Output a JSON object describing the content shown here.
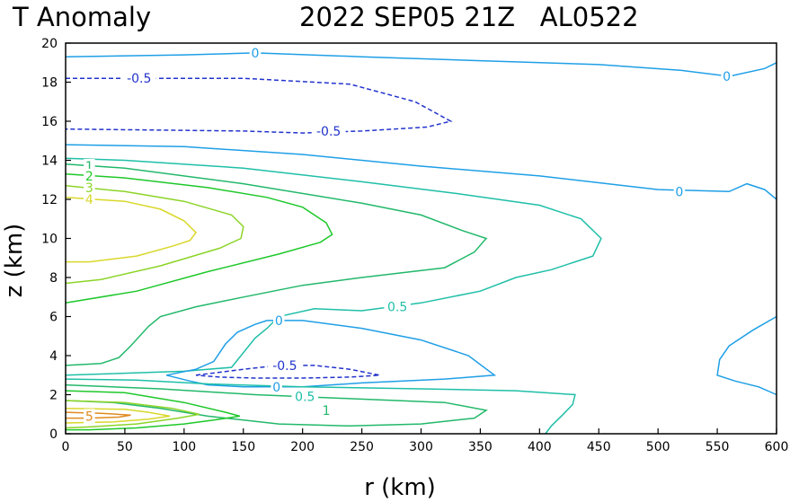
{
  "title_left": "T Anomaly",
  "title_right": "2022 SEP05 21Z   AL0522",
  "chart_data": {
    "type": "contour",
    "title": "T Anomaly   2022 SEP05 21Z   AL0522",
    "xlabel": "r (km)",
    "ylabel": "z (km)",
    "xlim": [
      0,
      600
    ],
    "ylim": [
      0,
      20
    ],
    "xticks": [
      0,
      50,
      100,
      150,
      200,
      250,
      300,
      350,
      400,
      450,
      500,
      550,
      600
    ],
    "yticks": [
      0,
      2,
      4,
      6,
      8,
      10,
      12,
      14,
      16,
      18,
      20
    ],
    "levels": [
      {
        "value": -0.5,
        "color": "#2233cc",
        "dashed": true
      },
      {
        "value": 0,
        "color": "#1f9fe6",
        "dashed": false
      },
      {
        "value": 0.5,
        "color": "#1fbfa8",
        "dashed": false
      },
      {
        "value": 1,
        "color": "#22b86a",
        "dashed": false
      },
      {
        "value": 2,
        "color": "#1ec82a",
        "dashed": false
      },
      {
        "value": 3,
        "color": "#8cd428",
        "dashed": false
      },
      {
        "value": 4,
        "color": "#d9d72a",
        "dashed": false
      },
      {
        "value": 5,
        "color": "#e08a1e",
        "dashed": false
      }
    ],
    "contours": [
      {
        "level": 0,
        "points": [
          [
            0,
            19.3
          ],
          [
            100,
            19.4
          ],
          [
            160,
            19.5
          ],
          [
            250,
            19.3
          ],
          [
            350,
            19.1
          ],
          [
            450,
            18.9
          ],
          [
            520,
            18.6
          ],
          [
            560,
            18.3
          ],
          [
            590,
            18.7
          ],
          [
            600,
            19.0
          ]
        ]
      },
      {
        "level": -0.5,
        "points": [
          [
            0,
            18.2
          ],
          [
            150,
            18.2
          ],
          [
            240,
            17.9
          ],
          [
            295,
            17.0
          ],
          [
            310,
            16.5
          ],
          [
            325,
            16.0
          ],
          [
            305,
            15.7
          ],
          [
            250,
            15.5
          ],
          [
            200,
            15.4
          ],
          [
            150,
            15.5
          ],
          [
            0,
            15.6
          ]
        ]
      },
      {
        "level": 0,
        "points": [
          [
            0,
            14.8
          ],
          [
            100,
            14.7
          ],
          [
            200,
            14.3
          ],
          [
            300,
            13.7
          ],
          [
            400,
            13.2
          ],
          [
            500,
            12.5
          ],
          [
            560,
            12.4
          ],
          [
            575,
            12.8
          ],
          [
            590,
            12.5
          ],
          [
            600,
            12.0
          ]
        ]
      },
      {
        "level": 0.5,
        "points": [
          [
            0,
            14.1
          ],
          [
            50,
            14.0
          ],
          [
            150,
            13.6
          ],
          [
            250,
            12.9
          ],
          [
            330,
            12.3
          ],
          [
            400,
            11.7
          ],
          [
            435,
            11.0
          ],
          [
            452,
            10.0
          ],
          [
            445,
            9.1
          ],
          [
            410,
            8.4
          ],
          [
            380,
            8.0
          ],
          [
            350,
            7.3
          ],
          [
            300,
            6.7
          ],
          [
            250,
            6.3
          ],
          [
            210,
            6.4
          ],
          [
            180,
            6.0
          ],
          [
            170,
            5.4
          ],
          [
            160,
            4.9
          ],
          [
            140,
            3.4
          ],
          [
            100,
            3.2
          ],
          [
            0,
            3.0
          ]
        ]
      },
      {
        "level": 1,
        "points": [
          [
            0,
            13.8
          ],
          [
            50,
            13.6
          ],
          [
            150,
            12.8
          ],
          [
            250,
            11.8
          ],
          [
            300,
            11.2
          ],
          [
            335,
            10.4
          ],
          [
            355,
            10.0
          ],
          [
            345,
            9.3
          ],
          [
            320,
            8.5
          ],
          [
            250,
            8.0
          ],
          [
            200,
            7.6
          ],
          [
            150,
            7.0
          ],
          [
            110,
            6.5
          ],
          [
            80,
            6.0
          ],
          [
            70,
            5.5
          ],
          [
            55,
            4.5
          ],
          [
            45,
            3.9
          ],
          [
            30,
            3.6
          ],
          [
            0,
            3.5
          ]
        ]
      },
      {
        "level": 2,
        "points": [
          [
            0,
            13.3
          ],
          [
            50,
            13.1
          ],
          [
            120,
            12.6
          ],
          [
            170,
            12.1
          ],
          [
            200,
            11.6
          ],
          [
            220,
            10.8
          ],
          [
            225,
            10.2
          ],
          [
            215,
            9.8
          ],
          [
            180,
            9.2
          ],
          [
            120,
            8.3
          ],
          [
            60,
            7.3
          ],
          [
            0,
            6.7
          ]
        ]
      },
      {
        "level": 3,
        "points": [
          [
            0,
            12.7
          ],
          [
            50,
            12.4
          ],
          [
            100,
            11.9
          ],
          [
            140,
            11.2
          ],
          [
            150,
            10.6
          ],
          [
            148,
            10.0
          ],
          [
            130,
            9.5
          ],
          [
            80,
            8.6
          ],
          [
            30,
            7.9
          ],
          [
            0,
            7.7
          ]
        ]
      },
      {
        "level": 4,
        "points": [
          [
            0,
            12.1
          ],
          [
            50,
            11.9
          ],
          [
            80,
            11.5
          ],
          [
            100,
            10.9
          ],
          [
            110,
            10.3
          ],
          [
            105,
            9.9
          ],
          [
            90,
            9.6
          ],
          [
            60,
            9.1
          ],
          [
            20,
            8.8
          ],
          [
            0,
            8.8
          ]
        ]
      },
      {
        "level": 0,
        "points": [
          [
            170,
            5.8
          ],
          [
            200,
            5.8
          ],
          [
            250,
            5.4
          ],
          [
            300,
            4.8
          ],
          [
            340,
            4.0
          ],
          [
            362,
            3.0
          ],
          [
            320,
            2.8
          ],
          [
            250,
            2.6
          ],
          [
            200,
            2.4
          ],
          [
            150,
            2.4
          ],
          [
            120,
            2.5
          ],
          [
            105,
            2.7
          ],
          [
            85,
            3.0
          ],
          [
            110,
            3.3
          ],
          [
            125,
            3.7
          ],
          [
            135,
            4.6
          ],
          [
            145,
            5.2
          ],
          [
            160,
            5.6
          ],
          [
            170,
            5.8
          ]
        ]
      },
      {
        "level": -0.5,
        "points": [
          [
            110,
            3.0
          ],
          [
            150,
            3.3
          ],
          [
            180,
            3.5
          ],
          [
            210,
            3.5
          ],
          [
            240,
            3.3
          ],
          [
            265,
            3.0
          ],
          [
            240,
            2.9
          ],
          [
            200,
            2.85
          ],
          [
            160,
            2.85
          ],
          [
            130,
            2.9
          ],
          [
            110,
            3.0
          ]
        ]
      },
      {
        "level": 0.5,
        "points": [
          [
            0,
            2.8
          ],
          [
            60,
            2.75
          ],
          [
            120,
            2.55
          ],
          [
            200,
            2.4
          ],
          [
            300,
            2.3
          ],
          [
            380,
            2.2
          ],
          [
            430,
            2.0
          ],
          [
            428,
            1.5
          ],
          [
            420,
            1.0
          ],
          [
            410,
            0.4
          ],
          [
            405,
            0.0
          ]
        ]
      },
      {
        "level": 1,
        "points": [
          [
            0,
            2.5
          ],
          [
            80,
            2.3
          ],
          [
            160,
            2.0
          ],
          [
            240,
            1.8
          ],
          [
            320,
            1.6
          ],
          [
            355,
            1.2
          ],
          [
            345,
            0.8
          ],
          [
            300,
            0.5
          ],
          [
            240,
            0.4
          ],
          [
            180,
            0.5
          ],
          [
            120,
            0.9
          ],
          [
            80,
            1.3
          ],
          [
            40,
            1.6
          ],
          [
            0,
            1.7
          ]
        ]
      },
      {
        "level": 2,
        "points": [
          [
            0,
            2.2
          ],
          [
            50,
            2.1
          ],
          [
            100,
            1.6
          ],
          [
            135,
            1.1
          ],
          [
            147,
            0.9
          ],
          [
            125,
            0.7
          ],
          [
            100,
            0.5
          ],
          [
            60,
            0.3
          ],
          [
            20,
            0.2
          ],
          [
            0,
            0.2
          ]
        ]
      },
      {
        "level": 3,
        "points": [
          [
            0,
            1.7
          ],
          [
            50,
            1.6
          ],
          [
            90,
            1.3
          ],
          [
            113,
            1.0
          ],
          [
            95,
            0.8
          ],
          [
            60,
            0.5
          ],
          [
            20,
            0.35
          ],
          [
            0,
            0.3
          ]
        ]
      },
      {
        "level": 4,
        "points": [
          [
            0,
            1.3
          ],
          [
            50,
            1.25
          ],
          [
            70,
            1.1
          ],
          [
            88,
            0.9
          ],
          [
            70,
            0.75
          ],
          [
            40,
            0.6
          ],
          [
            0,
            0.55
          ]
        ]
      },
      {
        "level": 5,
        "points": [
          [
            0,
            1.1
          ],
          [
            30,
            1.05
          ],
          [
            55,
            0.95
          ],
          [
            45,
            0.85
          ],
          [
            20,
            0.8
          ],
          [
            0,
            0.8
          ]
        ]
      },
      {
        "level": 0,
        "points": [
          [
            600,
            6.0
          ],
          [
            580,
            5.3
          ],
          [
            560,
            4.5
          ],
          [
            552,
            3.8
          ],
          [
            550,
            3.0
          ],
          [
            565,
            2.7
          ],
          [
            585,
            2.4
          ],
          [
            600,
            2.0
          ]
        ]
      }
    ],
    "contour_labels": [
      {
        "text": "0",
        "x": 160,
        "y": 19.5,
        "level": 0
      },
      {
        "text": "0",
        "x": 558,
        "y": 18.3,
        "level": 0
      },
      {
        "text": "-0.5",
        "x": 62,
        "y": 18.2,
        "level": -0.5
      },
      {
        "text": "-0.5",
        "x": 222,
        "y": 15.5,
        "level": -0.5
      },
      {
        "text": "0",
        "x": 518,
        "y": 12.4,
        "level": 0
      },
      {
        "text": "1",
        "x": 20,
        "y": 13.7,
        "level": 1
      },
      {
        "text": "2",
        "x": 20,
        "y": 13.2,
        "level": 2
      },
      {
        "text": "3",
        "x": 20,
        "y": 12.6,
        "level": 3
      },
      {
        "text": "4",
        "x": 20,
        "y": 12.0,
        "level": 4
      },
      {
        "text": "0.5",
        "x": 280,
        "y": 6.5,
        "level": 0.5
      },
      {
        "text": "0",
        "x": 180,
        "y": 5.8,
        "level": 0
      },
      {
        "text": "-0.5",
        "x": 185,
        "y": 3.5,
        "level": -0.5
      },
      {
        "text": "0",
        "x": 178,
        "y": 2.4,
        "level": 0
      },
      {
        "text": "0.5",
        "x": 202,
        "y": 1.9,
        "level": 0.5
      },
      {
        "text": "1",
        "x": 220,
        "y": 1.2,
        "level": 1
      },
      {
        "text": "5",
        "x": 20,
        "y": 0.9,
        "level": 5
      }
    ]
  }
}
